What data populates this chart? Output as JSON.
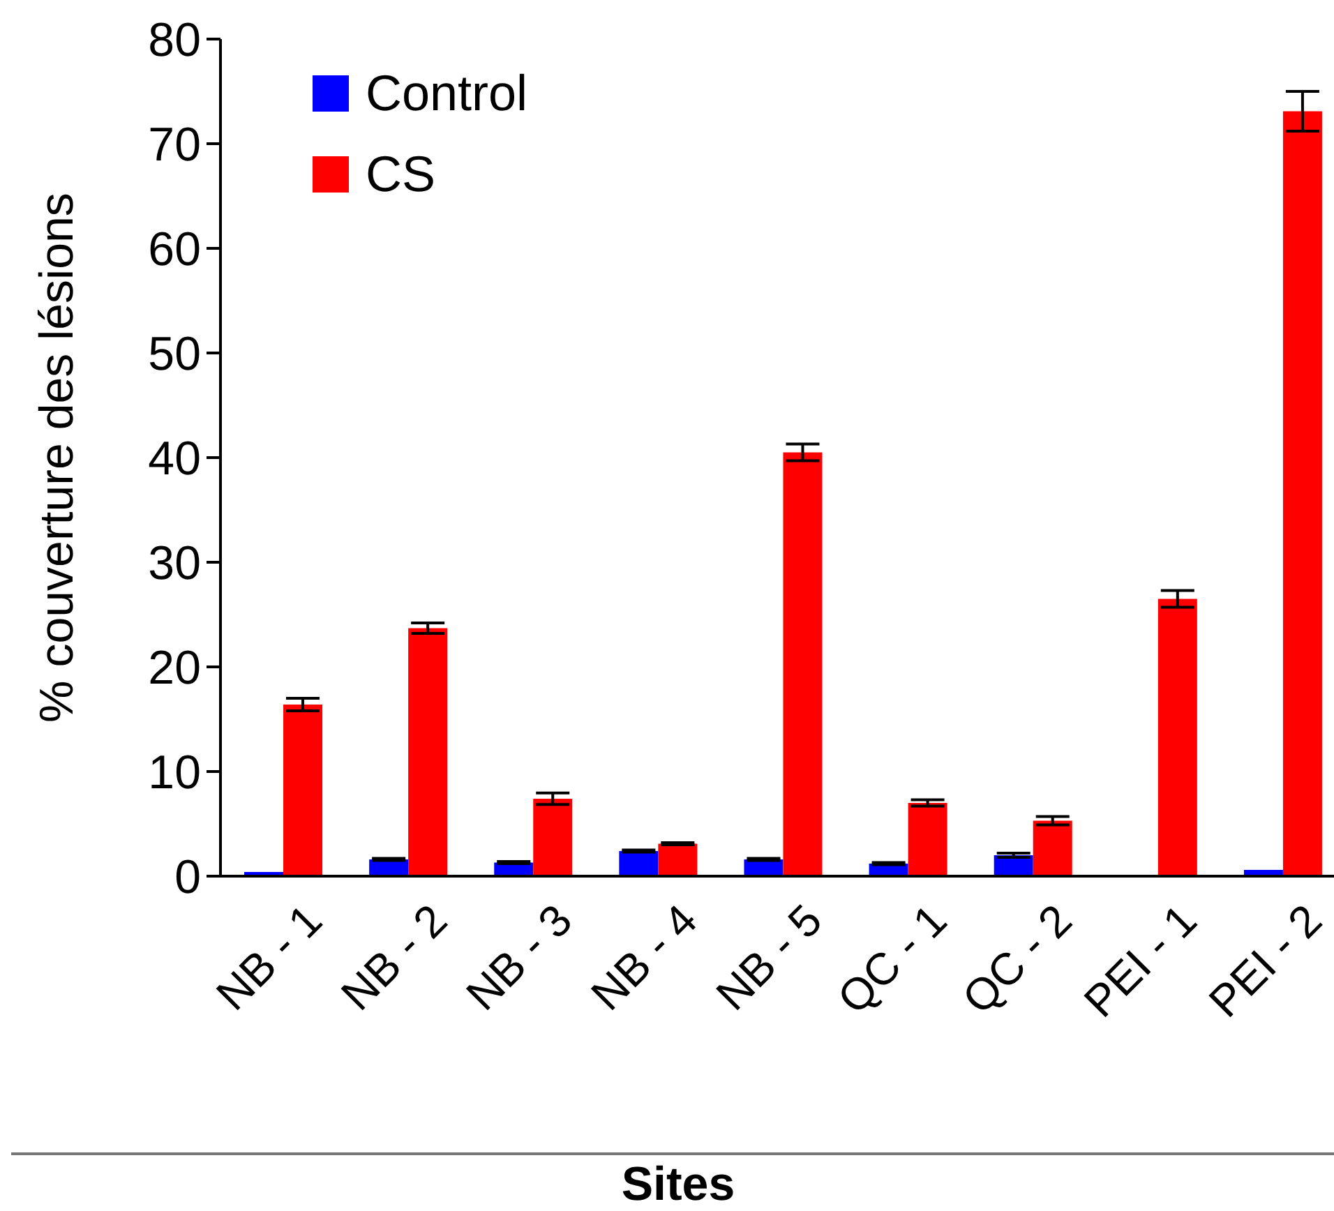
{
  "chart_data": {
    "type": "bar",
    "xlabel": "Sites",
    "ylabel": "% couverture des lésions",
    "categories": [
      "NB - 1",
      "NB - 2",
      "NB - 3",
      "NB - 4",
      "NB - 5",
      "QC - 1",
      "QC - 2",
      "PEI - 1",
      "PEI - 2"
    ],
    "series": [
      {
        "name": "Control",
        "color": "#0000ff",
        "values": [
          0.4,
          1.6,
          1.3,
          2.4,
          1.6,
          1.2,
          2.0,
          0,
          0.6
        ],
        "errors": [
          null,
          0.1,
          0.1,
          0.1,
          0.1,
          0.1,
          0.2,
          null,
          null
        ]
      },
      {
        "name": "CS",
        "color": "#ff0000",
        "values": [
          16.4,
          23.7,
          7.4,
          3.1,
          40.5,
          7.0,
          5.3,
          26.5,
          73.1
        ],
        "errors": [
          0.6,
          0.5,
          0.55,
          0.1,
          0.8,
          0.3,
          0.4,
          0.8,
          1.9
        ]
      }
    ],
    "ylim": [
      0,
      80
    ],
    "yticks": [
      0,
      10,
      20,
      30,
      40,
      50,
      60,
      70,
      80
    ],
    "grid": false,
    "legend": "top left"
  }
}
